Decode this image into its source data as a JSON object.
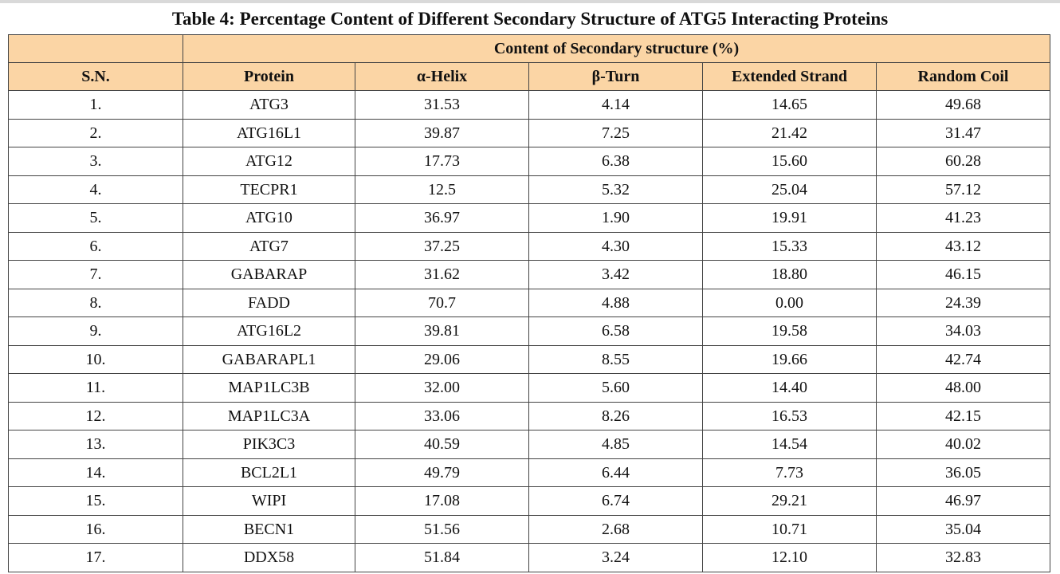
{
  "caption": "Table 4: Percentage Content of Different Secondary Structure of ATG5 Interacting Proteins",
  "group_header": "Content of Secondary structure (%)",
  "columns": [
    "S.N.",
    "Protein",
    "α-Helix",
    "β-Turn",
    "Extended Strand",
    "Random Coil"
  ],
  "rows": [
    [
      "1.",
      "ATG3",
      "31.53",
      "4.14",
      "14.65",
      "49.68"
    ],
    [
      "2.",
      "ATG16L1",
      "39.87",
      "7.25",
      "21.42",
      "31.47"
    ],
    [
      "3.",
      "ATG12",
      "17.73",
      "6.38",
      "15.60",
      "60.28"
    ],
    [
      "4.",
      "TECPR1",
      "12.5",
      "5.32",
      "25.04",
      "57.12"
    ],
    [
      "5.",
      "ATG10",
      "36.97",
      "1.90",
      "19.91",
      "41.23"
    ],
    [
      "6.",
      "ATG7",
      "37.25",
      "4.30",
      "15.33",
      "43.12"
    ],
    [
      "7.",
      "GABARAP",
      "31.62",
      "3.42",
      "18.80",
      "46.15"
    ],
    [
      "8.",
      "FADD",
      "70.7",
      "4.88",
      "0.00",
      "24.39"
    ],
    [
      "9.",
      "ATG16L2",
      "39.81",
      "6.58",
      "19.58",
      "34.03"
    ],
    [
      "10.",
      "GABARAPL1",
      "29.06",
      "8.55",
      "19.66",
      "42.74"
    ],
    [
      "11.",
      "MAP1LC3B",
      "32.00",
      "5.60",
      "14.40",
      "48.00"
    ],
    [
      "12.",
      "MAP1LC3A",
      "33.06",
      "8.26",
      "16.53",
      "42.15"
    ],
    [
      "13.",
      "PIK3C3",
      "40.59",
      "4.85",
      "14.54",
      "40.02"
    ],
    [
      "14.",
      "BCL2L1",
      "49.79",
      "6.44",
      "7.73",
      "36.05"
    ],
    [
      "15.",
      "WIPI",
      "17.08",
      "6.74",
      "29.21",
      "46.97"
    ],
    [
      "16.",
      "BECN1",
      "51.56",
      "2.68",
      "10.71",
      "35.04"
    ],
    [
      "17.",
      "DDX58",
      "51.84",
      "3.24",
      "12.10",
      "32.83"
    ]
  ],
  "colors": {
    "header_fill": "#fbd5a5",
    "border": "#444444",
    "top_bar": "#d9d9d9"
  }
}
